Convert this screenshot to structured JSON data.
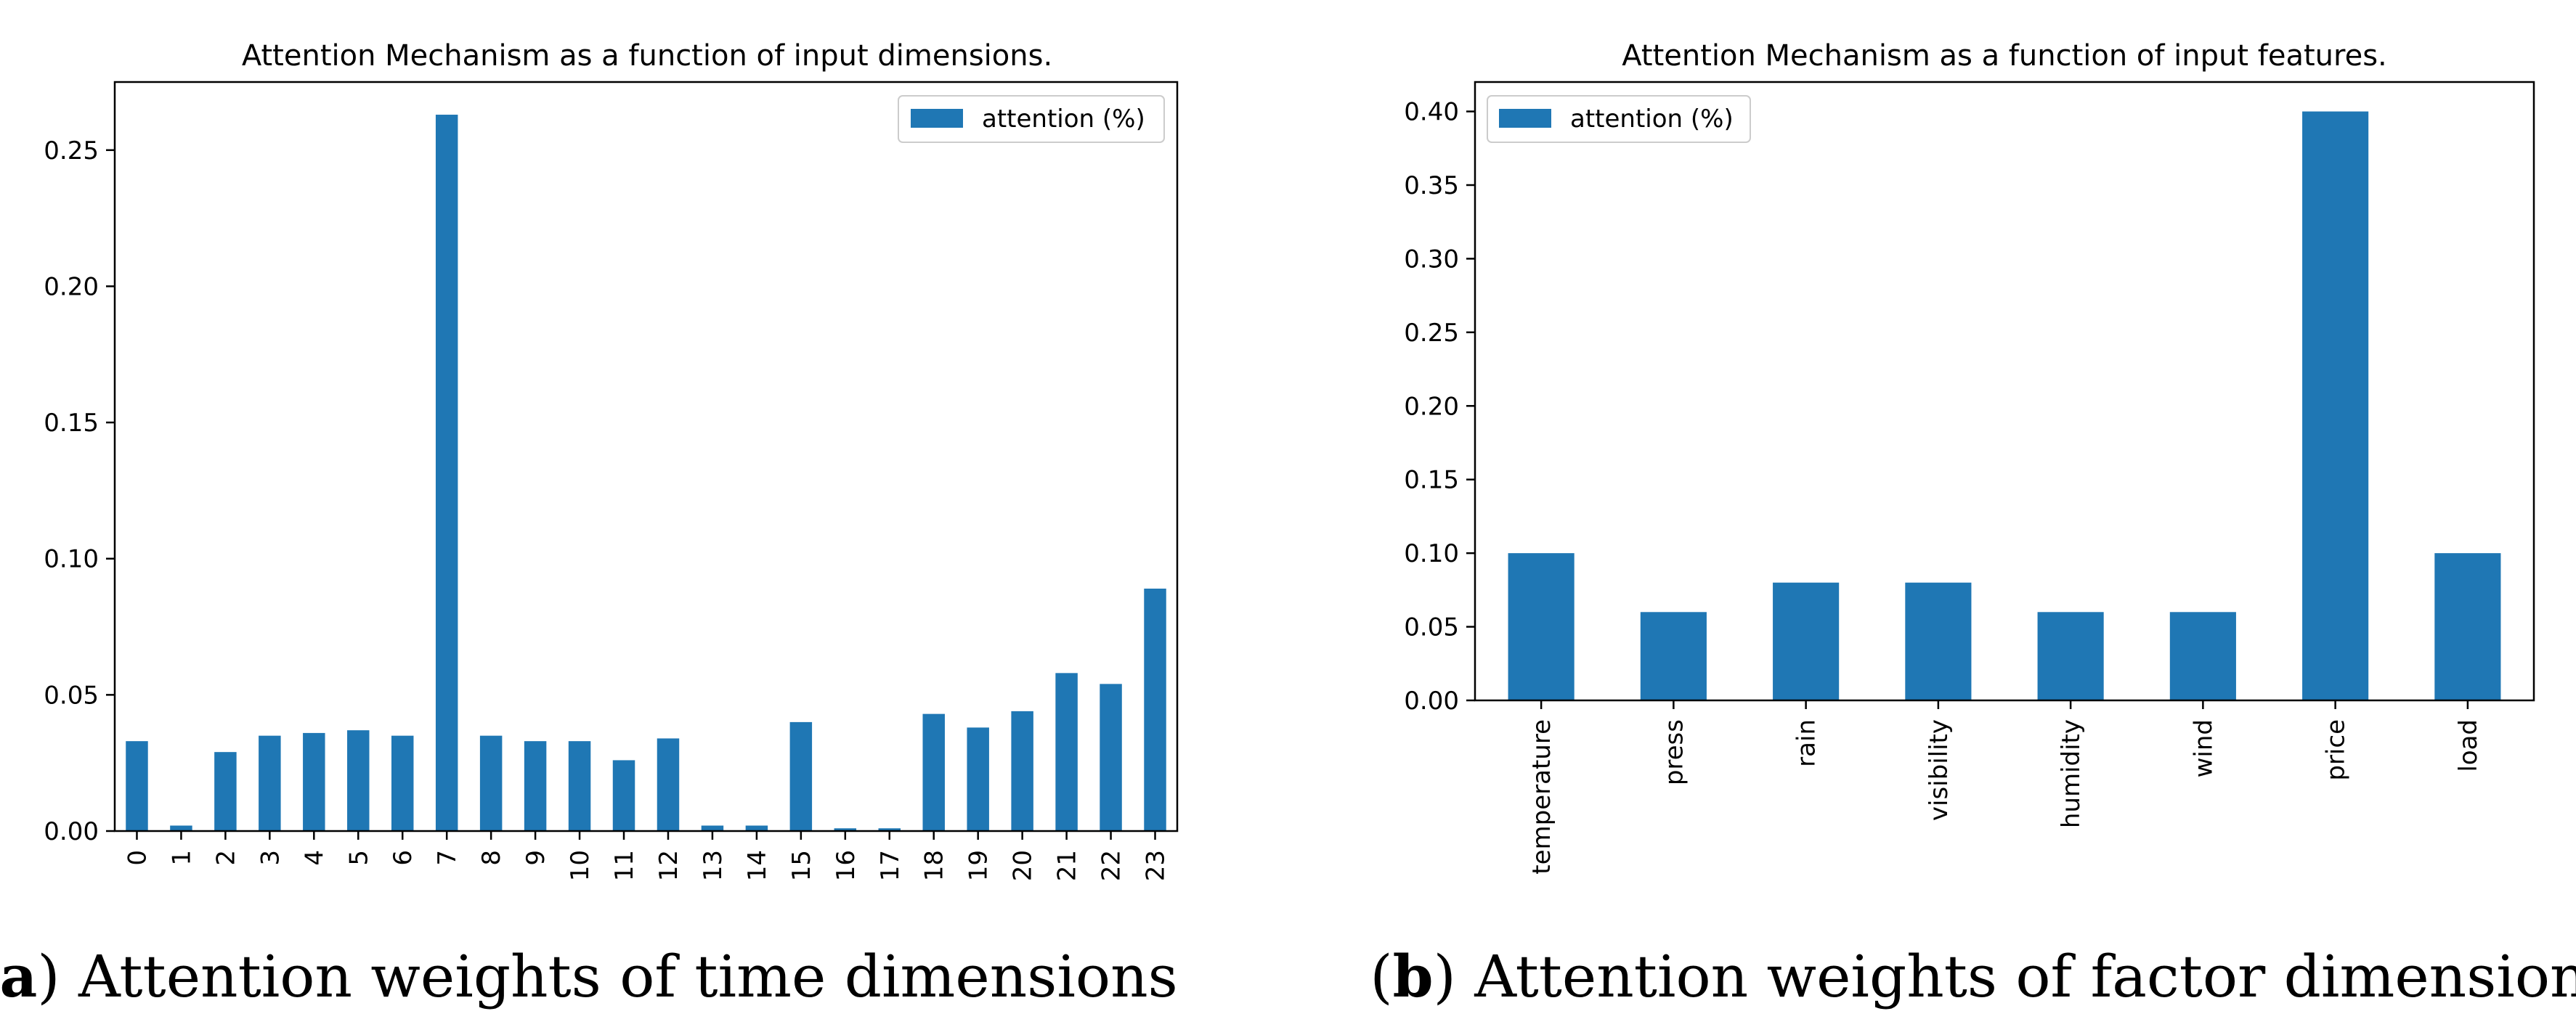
{
  "chart_data": [
    {
      "type": "bar",
      "title": "Attention Mechanism as a function of input dimensions.",
      "xlabel": "",
      "ylabel": "",
      "categories": [
        "0",
        "1",
        "2",
        "3",
        "4",
        "5",
        "6",
        "7",
        "8",
        "9",
        "10",
        "11",
        "12",
        "13",
        "14",
        "15",
        "16",
        "17",
        "18",
        "19",
        "20",
        "21",
        "22",
        "23"
      ],
      "series": [
        {
          "name": "attention (%)",
          "values": [
            0.033,
            0.002,
            0.029,
            0.035,
            0.036,
            0.037,
            0.035,
            0.263,
            0.035,
            0.033,
            0.033,
            0.026,
            0.034,
            0.002,
            0.002,
            0.04,
            0.001,
            0.001,
            0.043,
            0.038,
            0.044,
            0.058,
            0.054,
            0.089
          ]
        }
      ],
      "ylim": [
        0,
        0.275
      ],
      "yticks": [
        0.0,
        0.05,
        0.1,
        0.15,
        0.2,
        0.25
      ],
      "ytick_labels": [
        "0.00",
        "0.05",
        "0.10",
        "0.15",
        "0.20",
        "0.25"
      ],
      "legend_position": "top-right",
      "grid": false,
      "color": "#1f77b4",
      "caption_bold": "a",
      "caption_text": "Attention weights of time dimensions"
    },
    {
      "type": "bar",
      "title": "Attention Mechanism as a function of input features.",
      "xlabel": "",
      "ylabel": "",
      "categories": [
        "temperature",
        "press",
        "rain",
        "visibility",
        "humidity",
        "wind",
        "price",
        "load"
      ],
      "series": [
        {
          "name": "attention (%)",
          "values": [
            0.1,
            0.06,
            0.08,
            0.08,
            0.06,
            0.06,
            0.4,
            0.1
          ]
        }
      ],
      "ylim": [
        0,
        0.42
      ],
      "yticks": [
        0.0,
        0.05,
        0.1,
        0.15,
        0.2,
        0.25,
        0.3,
        0.35,
        0.4
      ],
      "ytick_labels": [
        "0.00",
        "0.05",
        "0.10",
        "0.15",
        "0.20",
        "0.25",
        "0.30",
        "0.35",
        "0.40"
      ],
      "legend_position": "top-left",
      "grid": false,
      "color": "#1f77b4",
      "caption_bold": "b",
      "caption_text": "Attention weights of factor dimensions"
    }
  ]
}
